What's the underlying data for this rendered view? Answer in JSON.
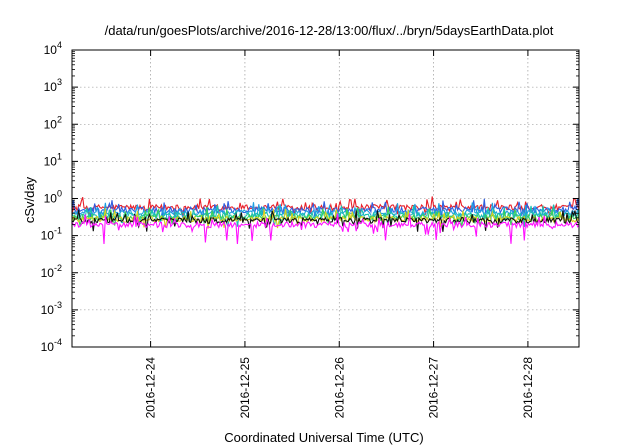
{
  "chart_data": {
    "type": "line",
    "title": "/data/run/goesPlots/archive/2016-12-28/13:00/flux/../bryn/5daysEarthData.plot",
    "xlabel": "Coordinated Universal Time (UTC)",
    "ylabel": "cSv/day",
    "y_scale": "log",
    "ylim": [
      0.0001,
      10000
    ],
    "y_ticks": [
      {
        "base": "10",
        "exp": "-4",
        "value": 0.0001
      },
      {
        "base": "10",
        "exp": "-3",
        "value": 0.001
      },
      {
        "base": "10",
        "exp": "-2",
        "value": 0.01
      },
      {
        "base": "10",
        "exp": "-1",
        "value": 0.1
      },
      {
        "base": "10",
        "exp": "0",
        "value": 1
      },
      {
        "base": "10",
        "exp": "1",
        "value": 10
      },
      {
        "base": "10",
        "exp": "2",
        "value": 100
      },
      {
        "base": "10",
        "exp": "3",
        "value": 1000
      },
      {
        "base": "10",
        "exp": "4",
        "value": 10000
      }
    ],
    "xlim": [
      "2016-12-23T04:00",
      "2016-12-28T13:00"
    ],
    "x_ticks": [
      "2016-12-24",
      "2016-12-25",
      "2016-12-26",
      "2016-12-27",
      "2016-12-28"
    ],
    "grid": true,
    "series": [
      {
        "color": "#e8202a",
        "level": 0.58
      },
      {
        "color": "#2f5fe0",
        "level": 0.5
      },
      {
        "color": "#1ea0e0",
        "level": 0.42
      },
      {
        "color": "#19c0b0",
        "level": 0.36
      },
      {
        "color": "#3ad05a",
        "level": 0.31
      },
      {
        "color": "#d8d020",
        "level": 0.28
      },
      {
        "color": "#101010",
        "level": 0.26
      },
      {
        "color": "#ff10ff",
        "level": 0.2
      }
    ]
  }
}
